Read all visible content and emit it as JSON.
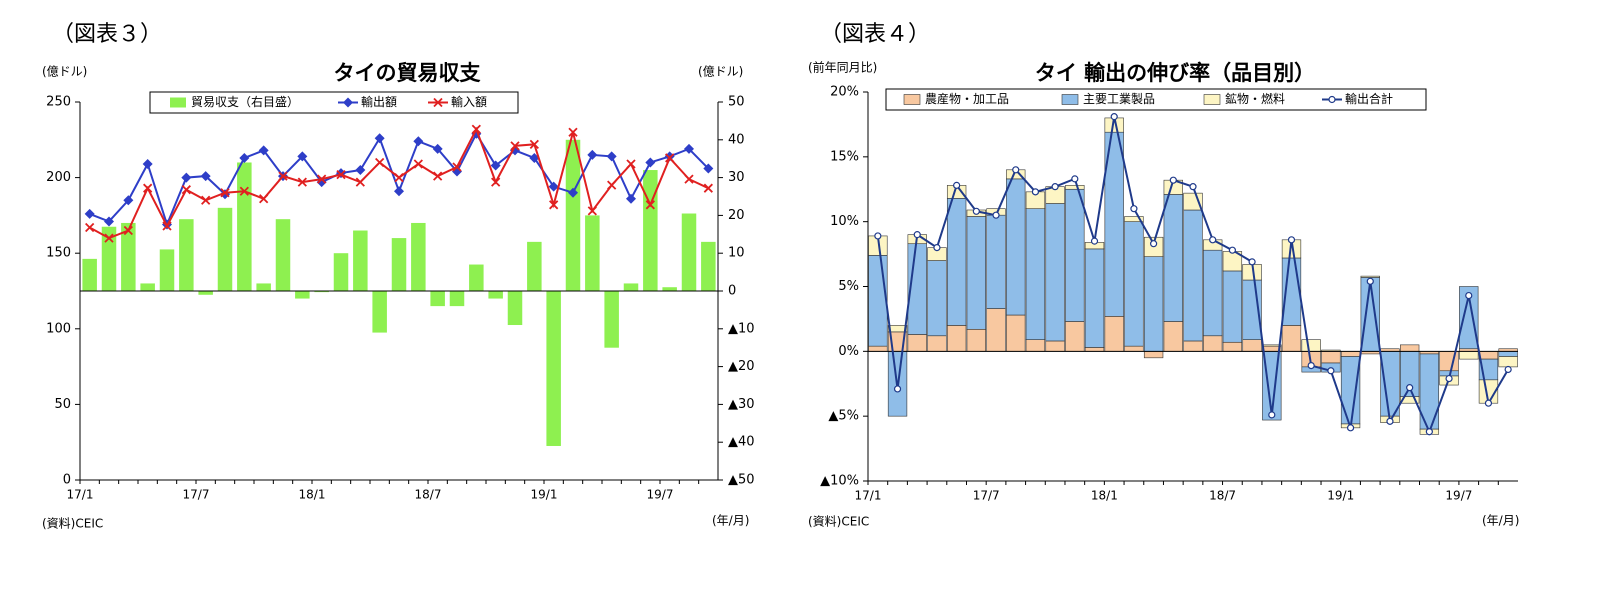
{
  "chart_data": [
    {
      "type": "combo",
      "figure_label": "（図表３）",
      "title": "タイの貿易収支",
      "y_label": "(億ドル)",
      "y2_label": "(億ドル)",
      "source": "(資料)CEIC",
      "x_label": "(年/月)",
      "categories": [
        "17/1",
        null,
        null,
        null,
        null,
        null,
        "17/7",
        null,
        null,
        null,
        null,
        null,
        "18/1",
        null,
        null,
        null,
        null,
        null,
        "18/7",
        null,
        null,
        null,
        null,
        null,
        "19/1",
        null,
        null,
        null,
        null,
        null,
        "19/7",
        null,
        null
      ],
      "ylim": [
        0,
        250
      ],
      "yticks": [
        0,
        50,
        100,
        150,
        200,
        250
      ],
      "y2lim": [
        -50,
        50
      ],
      "y2ticks": [
        50,
        40,
        30,
        20,
        10,
        0,
        {
          "value": -10,
          "label": "▲10"
        },
        {
          "value": -20,
          "label": "▲20"
        },
        {
          "value": -30,
          "label": "▲30"
        },
        {
          "value": -40,
          "label": "▲40"
        },
        {
          "value": -50,
          "label": "▲50"
        }
      ],
      "series": [
        {
          "name": "貿易収支（右目盛）",
          "type": "bar",
          "axis": "y2",
          "color": "#8ef050",
          "values": [
            8.5,
            17,
            18,
            2,
            11,
            19,
            -1,
            22,
            34,
            2,
            19,
            -2,
            -0.3,
            10,
            16,
            -11,
            14,
            18,
            -4,
            -4,
            7,
            -2,
            -9,
            13,
            -41,
            40,
            20,
            -15,
            2,
            32,
            1,
            20.5,
            13
          ]
        },
        {
          "name": "輸出額",
          "type": "line",
          "marker": "diamond",
          "color": "#2e3ec8",
          "values": [
            176,
            171,
            185,
            209,
            169,
            200,
            201,
            189,
            213,
            218,
            201,
            214,
            197,
            203,
            205,
            226,
            191,
            224,
            219,
            204,
            229,
            208,
            218,
            213,
            194,
            190,
            215,
            214,
            186,
            210,
            214,
            219,
            206
          ]
        },
        {
          "name": "輸入額",
          "type": "line",
          "marker": "x",
          "color": "#e02020",
          "values": [
            167,
            160,
            165,
            193,
            168,
            192,
            185,
            190,
            191,
            186,
            201,
            197,
            199,
            202,
            197,
            210,
            200,
            209,
            201,
            207,
            232,
            197,
            221,
            222,
            182,
            230,
            178,
            195,
            209,
            182,
            213,
            199,
            193
          ]
        }
      ]
    },
    {
      "type": "stacked_bar",
      "figure_label": "（図表４）",
      "title": "タイ  輸出の伸び率（品目別）",
      "y_label": "(前年同月比)",
      "source": "(資料)CEIC",
      "x_label": "(年/月)",
      "categories": [
        "17/1",
        null,
        null,
        null,
        null,
        null,
        "17/7",
        null,
        null,
        null,
        null,
        null,
        "18/1",
        null,
        null,
        null,
        null,
        null,
        "18/7",
        null,
        null,
        null,
        null,
        null,
        "19/1",
        null,
        null,
        null,
        null,
        null,
        "19/7",
        null,
        null
      ],
      "ylim": [
        -10,
        20
      ],
      "yticks": [
        {
          "value": 20,
          "label": "20%"
        },
        {
          "value": 15,
          "label": "15%"
        },
        {
          "value": 10,
          "label": "10%"
        },
        {
          "value": 5,
          "label": "5%"
        },
        {
          "value": 0,
          "label": "0%"
        },
        {
          "value": -5,
          "label": "▲5%"
        },
        {
          "value": -10,
          "label": "▲10%"
        }
      ],
      "series": [
        {
          "name": "農産物・加工品",
          "type": "bar",
          "color": "#f8c8a0",
          "values": [
            0.4,
            1.5,
            1.3,
            1.2,
            2.0,
            1.7,
            3.3,
            2.8,
            0.9,
            0.8,
            2.3,
            0.3,
            2.7,
            0.4,
            -0.5,
            2.3,
            0.8,
            1.2,
            0.7,
            0.9,
            0.4,
            2.0,
            -1.2,
            -0.9,
            -0.4,
            -0.2,
            0.2,
            0.5,
            -0.2,
            -1.5,
            0.2,
            -0.6,
            0.2
          ]
        },
        {
          "name": "主要工業製品",
          "type": "bar",
          "color": "#8fbde8",
          "values": [
            7.0,
            -5.0,
            7.0,
            5.8,
            9.8,
            8.7,
            7.2,
            10.5,
            10.1,
            10.6,
            10.2,
            7.6,
            14.2,
            9.6,
            7.3,
            9.8,
            10.1,
            6.6,
            5.5,
            4.6,
            -5.3,
            5.2,
            -0.4,
            -0.7,
            -5.2,
            5.7,
            -5.0,
            -3.5,
            -5.8,
            -0.4,
            4.8,
            -1.6,
            -0.4
          ]
        },
        {
          "name": "鉱物・燃料",
          "type": "bar",
          "color": "#fdf5c4",
          "values": [
            1.5,
            0.5,
            0.7,
            1.0,
            1.0,
            0.5,
            0.5,
            0.7,
            1.3,
            1.3,
            0.3,
            0.5,
            1.1,
            0.4,
            1.5,
            1.1,
            1.3,
            0.8,
            1.5,
            1.2,
            0.1,
            1.4,
            0.9,
            0.1,
            -0.3,
            0.1,
            -0.5,
            -0.5,
            -0.4,
            -0.7,
            -0.6,
            -1.8,
            -0.8
          ]
        },
        {
          "name": "輸出合計",
          "type": "line",
          "marker": "circle",
          "color": "#1f3a8a",
          "values": [
            8.9,
            -2.9,
            9.0,
            8.0,
            12.8,
            10.8,
            10.5,
            14.0,
            12.3,
            12.7,
            13.3,
            8.5,
            18.1,
            11.0,
            8.3,
            13.2,
            12.7,
            8.6,
            7.8,
            6.9,
            -4.9,
            8.6,
            -1.1,
            -1.5,
            -5.9,
            5.4,
            -5.4,
            -2.8,
            -6.2,
            -2.1,
            4.3,
            -4.0,
            -1.4
          ]
        }
      ]
    }
  ]
}
